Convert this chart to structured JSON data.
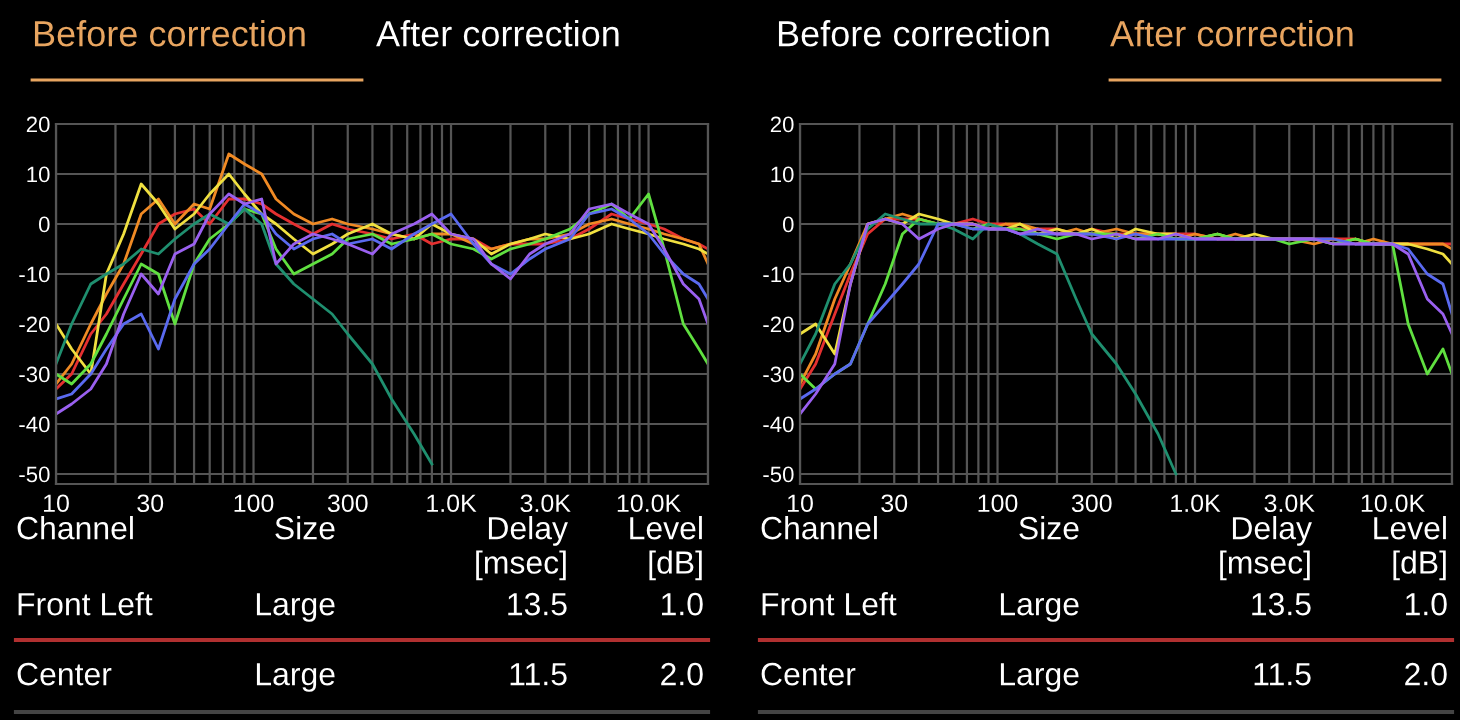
{
  "chart_data": [
    {
      "type": "line",
      "title": "Before correction",
      "subtitle": "After correction",
      "log": "x",
      "grid": true,
      "legend": false,
      "marker": "none",
      "line_style": "solid",
      "xlim": [
        10,
        20000
      ],
      "ylim": [
        -52,
        20
      ],
      "xticks": [
        10,
        {
          "value": 20,
          "label": null
        },
        30,
        {
          "value": 40,
          "label": null
        },
        {
          "value": 50,
          "label": null
        },
        {
          "value": 60,
          "label": null
        },
        {
          "value": 70,
          "label": null
        },
        {
          "value": 80,
          "label": null
        },
        {
          "value": 90,
          "label": null
        },
        100,
        {
          "value": 200,
          "label": null
        },
        300,
        {
          "value": 400,
          "label": null
        },
        {
          "value": 500,
          "label": null
        },
        {
          "value": 600,
          "label": null
        },
        {
          "value": 700,
          "label": null
        },
        {
          "value": 800,
          "label": null
        },
        {
          "value": 900,
          "label": null
        },
        {
          "value": 1000,
          "label": "1.0K"
        },
        {
          "value": 2000,
          "label": null
        },
        {
          "value": 3000,
          "label": "3.0K"
        },
        {
          "value": 4000,
          "label": null
        },
        {
          "value": 5000,
          "label": null
        },
        {
          "value": 6000,
          "label": null
        },
        {
          "value": 7000,
          "label": null
        },
        {
          "value": 8000,
          "label": null
        },
        {
          "value": 9000,
          "label": null
        },
        {
          "value": 10000,
          "label": "10.0K"
        },
        {
          "value": 20000,
          "label": null
        }
      ],
      "yticks": [
        20,
        10,
        0,
        -10,
        -20,
        -30,
        -40,
        -50
      ],
      "x": [
        10,
        12,
        15,
        18,
        22,
        27,
        33,
        40,
        50,
        60,
        75,
        90,
        110,
        130,
        160,
        200,
        250,
        300,
        400,
        500,
        650,
        800,
        1000,
        1300,
        1600,
        2000,
        2500,
        3000,
        4000,
        5000,
        6500,
        8000,
        10000,
        12000,
        15000,
        18000,
        20000
      ],
      "series": [
        {
          "color": "#e53030",
          "values": [
            -33,
            -30,
            -22,
            -18,
            -12,
            -6,
            0,
            2,
            3,
            0,
            5,
            5,
            4,
            2,
            0,
            -2,
            0,
            -1,
            -2,
            -3,
            -2,
            -4,
            -3,
            -3,
            -5,
            -4,
            -4,
            -4,
            -3,
            -1,
            2,
            1,
            0,
            -1,
            -3,
            -4,
            -5
          ]
        },
        {
          "color": "#f08a24",
          "values": [
            -32,
            -28,
            -20,
            -14,
            -8,
            2,
            5,
            0,
            4,
            3,
            14,
            12,
            10,
            5,
            2,
            0,
            1,
            0,
            -1,
            -2,
            -3,
            -2,
            -2,
            -4,
            -5,
            -4,
            -3,
            -3,
            -2,
            0,
            1,
            0,
            -1,
            -2,
            -3,
            -4,
            -8
          ]
        },
        {
          "color": "#f0e040",
          "values": [
            -20,
            -25,
            -30,
            -10,
            -2,
            8,
            4,
            -1,
            2,
            6,
            10,
            6,
            2,
            0,
            -3,
            -6,
            -4,
            -2,
            0,
            -2,
            -3,
            0,
            -2,
            -3,
            -6,
            -4,
            -3,
            -2,
            -3,
            -2,
            0,
            -1,
            -2,
            -3,
            -4,
            -5,
            -6
          ]
        },
        {
          "color": "#60e040",
          "values": [
            -30,
            -32,
            -28,
            -22,
            -15,
            -8,
            -10,
            -20,
            -8,
            -3,
            0,
            3,
            2,
            -5,
            -10,
            -8,
            -6,
            -3,
            -2,
            -4,
            -3,
            -2,
            -4,
            -5,
            -7,
            -5,
            -4,
            -3,
            -1,
            2,
            4,
            1,
            6,
            -5,
            -20,
            -25,
            -28
          ]
        },
        {
          "color": "#1f8f6f",
          "values": [
            -28,
            -20,
            -12,
            -10,
            -8,
            -5,
            -6,
            -3,
            0,
            2,
            0,
            3,
            0,
            -8,
            -12,
            -15,
            -18,
            -22,
            -28,
            -35,
            -42,
            -48,
            null,
            null,
            null,
            null,
            null,
            null,
            null,
            null,
            null,
            null,
            null,
            null,
            null,
            null,
            null
          ]
        },
        {
          "color": "#5a6af0",
          "values": [
            -35,
            -34,
            -30,
            -25,
            -20,
            -18,
            -25,
            -15,
            -8,
            -5,
            0,
            4,
            2,
            -2,
            -5,
            -3,
            -2,
            -4,
            -3,
            -5,
            -2,
            0,
            2,
            -4,
            -8,
            -10,
            -7,
            -5,
            -3,
            2,
            3,
            1,
            -2,
            -6,
            -10,
            -12,
            -15
          ]
        },
        {
          "color": "#9a60f0",
          "values": [
            -38,
            -36,
            -33,
            -28,
            -18,
            -10,
            -14,
            -6,
            -4,
            2,
            6,
            4,
            5,
            -8,
            -4,
            -2,
            -3,
            -4,
            -6,
            -2,
            0,
            2,
            -2,
            -3,
            -8,
            -11,
            -6,
            -4,
            -2,
            3,
            4,
            2,
            0,
            -5,
            -12,
            -15,
            -20
          ]
        }
      ]
    },
    {
      "type": "line",
      "title": "After correction",
      "subtitle": "Before correction",
      "log": "x",
      "grid": true,
      "legend": false,
      "marker": "none",
      "line_style": "solid",
      "xlim": [
        10,
        20000
      ],
      "ylim": [
        -52,
        20
      ],
      "xticks": [
        10,
        {
          "value": 20,
          "label": null
        },
        30,
        {
          "value": 40,
          "label": null
        },
        {
          "value": 50,
          "label": null
        },
        {
          "value": 60,
          "label": null
        },
        {
          "value": 70,
          "label": null
        },
        {
          "value": 80,
          "label": null
        },
        {
          "value": 90,
          "label": null
        },
        100,
        {
          "value": 200,
          "label": null
        },
        300,
        {
          "value": 400,
          "label": null
        },
        {
          "value": 500,
          "label": null
        },
        {
          "value": 600,
          "label": null
        },
        {
          "value": 700,
          "label": null
        },
        {
          "value": 800,
          "label": null
        },
        {
          "value": 900,
          "label": null
        },
        {
          "value": 1000,
          "label": "1.0K"
        },
        {
          "value": 2000,
          "label": null
        },
        {
          "value": 3000,
          "label": "3.0K"
        },
        {
          "value": 4000,
          "label": null
        },
        {
          "value": 5000,
          "label": null
        },
        {
          "value": 6000,
          "label": null
        },
        {
          "value": 7000,
          "label": null
        },
        {
          "value": 8000,
          "label": null
        },
        {
          "value": 9000,
          "label": null
        },
        {
          "value": 10000,
          "label": "10.0K"
        },
        {
          "value": 20000,
          "label": null
        }
      ],
      "yticks": [
        20,
        10,
        0,
        -10,
        -20,
        -30,
        -40,
        -50
      ],
      "x": [
        10,
        12,
        15,
        18,
        22,
        27,
        33,
        40,
        50,
        60,
        75,
        90,
        110,
        130,
        160,
        200,
        250,
        300,
        400,
        500,
        650,
        800,
        1000,
        1300,
        1600,
        2000,
        2500,
        3000,
        4000,
        5000,
        6500,
        8000,
        10000,
        12000,
        15000,
        18000,
        20000
      ],
      "series": [
        {
          "color": "#e53030",
          "values": [
            -33,
            -28,
            -18,
            -10,
            -2,
            1,
            1,
            1,
            0,
            0,
            1,
            0,
            0,
            -1,
            -1,
            -1,
            -2,
            -1,
            -2,
            -2,
            -2,
            -2,
            -2,
            -3,
            -3,
            -3,
            -3,
            -3,
            -3,
            -3,
            -3,
            -4,
            -4,
            -4,
            -4,
            -4,
            -4
          ]
        },
        {
          "color": "#f08a24",
          "values": [
            -32,
            -26,
            -15,
            -8,
            0,
            1,
            2,
            1,
            0,
            0,
            0,
            -1,
            0,
            0,
            -1,
            -2,
            -1,
            -2,
            -1,
            -2,
            -2,
            -3,
            -2,
            -3,
            -2,
            -3,
            -3,
            -3,
            -4,
            -3,
            -4,
            -3,
            -4,
            -4,
            -4,
            -4,
            -5
          ]
        },
        {
          "color": "#f0e040",
          "values": [
            -22,
            -20,
            -26,
            -12,
            0,
            1,
            0,
            2,
            1,
            0,
            0,
            -1,
            -1,
            0,
            -2,
            -1,
            -2,
            -1,
            -3,
            -1,
            -2,
            -2,
            -3,
            -2,
            -3,
            -2,
            -3,
            -3,
            -3,
            -4,
            -3,
            -4,
            -4,
            -4,
            -5,
            -6,
            -8
          ]
        },
        {
          "color": "#60e040",
          "values": [
            -30,
            -33,
            -30,
            -28,
            -20,
            -12,
            -2,
            1,
            0,
            0,
            -1,
            0,
            -1,
            -1,
            -2,
            -3,
            -2,
            -2,
            -2,
            -3,
            -2,
            -3,
            -3,
            -2,
            -3,
            -3,
            -3,
            -4,
            -3,
            -4,
            -3,
            -4,
            -4,
            -20,
            -30,
            -25,
            -30
          ]
        },
        {
          "color": "#1f8f6f",
          "values": [
            -28,
            -22,
            -12,
            -8,
            -1,
            2,
            1,
            0,
            0,
            -1,
            -3,
            0,
            -1,
            -2,
            -4,
            -6,
            -15,
            -22,
            -28,
            -34,
            -42,
            -50,
            null,
            null,
            null,
            null,
            null,
            null,
            null,
            null,
            null,
            null,
            null,
            null,
            null,
            null,
            null
          ]
        },
        {
          "color": "#5a6af0",
          "values": [
            -35,
            -33,
            -30,
            -28,
            -20,
            -16,
            -12,
            -8,
            0,
            0,
            -1,
            -1,
            -1,
            -2,
            -2,
            -2,
            -2,
            -2,
            -3,
            -2,
            -3,
            -3,
            -3,
            -3,
            -3,
            -3,
            -3,
            -3,
            -3,
            -3,
            -4,
            -4,
            -4,
            -5,
            -10,
            -12,
            -18
          ]
        },
        {
          "color": "#9a60f0",
          "values": [
            -38,
            -34,
            -28,
            -12,
            0,
            1,
            0,
            -3,
            -1,
            0,
            0,
            -1,
            -1,
            -2,
            -1,
            -2,
            -2,
            -3,
            -2,
            -3,
            -3,
            -2,
            -3,
            -3,
            -3,
            -3,
            -3,
            -3,
            -3,
            -4,
            -4,
            -4,
            -4,
            -6,
            -15,
            -18,
            -22
          ]
        }
      ]
    },
    {
      "type": "other",
      "annotations": [
        "Channel",
        "Size",
        "Delay\n[msec]",
        "Level\n[dB]",
        "Front Left",
        "Large",
        "13.5",
        "1.0",
        "Center",
        "Large",
        "11.5",
        "2.0"
      ]
    },
    {
      "type": "other",
      "annotations": [
        "Channel",
        "Size",
        "Delay\n[msec]",
        "Level\n[dB]",
        "Front Left",
        "Large",
        "13.5",
        "1.0",
        "Center",
        "Large",
        "11.5",
        "2.0"
      ]
    }
  ]
}
